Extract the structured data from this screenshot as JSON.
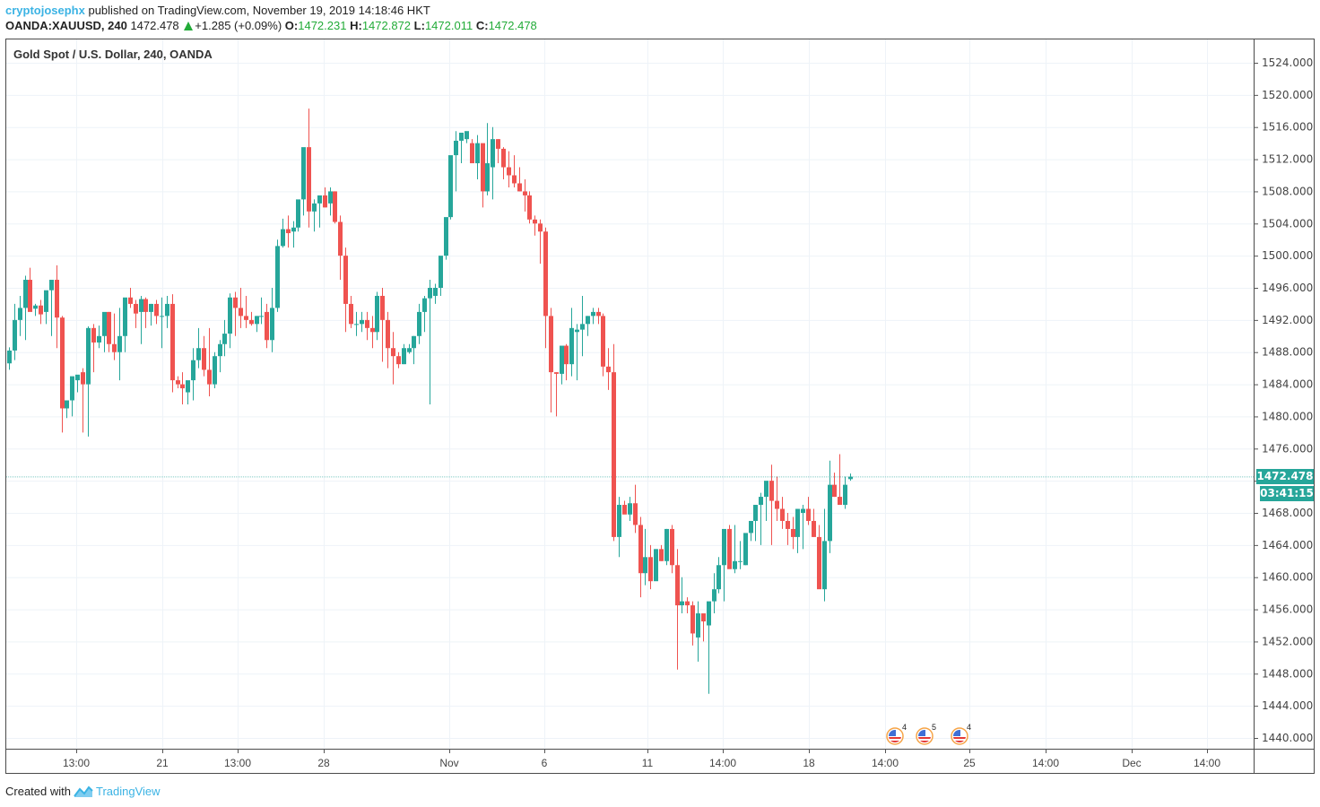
{
  "header": {
    "publisher": "cryptojosephx",
    "published_text": " published on TradingView.com, November 19, 2019 14:18:46 HKT",
    "symbol": "OANDA:XAUUSD, 240",
    "last": "1472.478",
    "change": "+1.285 (+0.09%)",
    "o_label": "O:",
    "o": "1472.231",
    "h_label": "H:",
    "h": "1472.872",
    "l_label": "L:",
    "l": "1472.011",
    "c_label": "C:",
    "c": "1472.478"
  },
  "pane_title": "Gold Spot / U.S. Dollar, 240, OANDA",
  "price_label": "1472.478",
  "countdown": "03:41:15",
  "footer": {
    "created_with": "Created with",
    "brand": "TradingView"
  },
  "colors": {
    "up": "#26a69a",
    "down": "#ef5350",
    "grid": "#eef3f8",
    "last_line": "#80cbc4",
    "axis": "#4a4a4a"
  },
  "events": [
    {
      "x": 998,
      "count": "4"
    },
    {
      "x": 1031,
      "count": "5"
    },
    {
      "x": 1070,
      "count": "4"
    }
  ],
  "chart_data": {
    "type": "candlestick",
    "title": "Gold Spot / U.S. Dollar, 240, OANDA",
    "symbol": "OANDA:XAUUSD",
    "timeframe": "240",
    "ylim": [
      1438,
      1526
    ],
    "y_ticks": [
      "1524.000",
      "1520.000",
      "1516.000",
      "1512.000",
      "1508.000",
      "1504.000",
      "1500.000",
      "1496.000",
      "1492.000",
      "1488.000",
      "1484.000",
      "1480.000",
      "1476.000",
      "1472.000",
      "1468.000",
      "1464.000",
      "1460.000",
      "1456.000",
      "1452.000",
      "1448.000",
      "1444.000",
      "1440.000"
    ],
    "y_tick_values": [
      1524,
      1520,
      1516,
      1512,
      1508,
      1504,
      1500,
      1496,
      1492,
      1488,
      1484,
      1480,
      1476,
      1472,
      1468,
      1464,
      1460,
      1456,
      1452,
      1448,
      1444,
      1440
    ],
    "x_ticks": [
      {
        "label": "13:00",
        "x": 85
      },
      {
        "label": "21",
        "x": 181
      },
      {
        "label": "13:00",
        "x": 265
      },
      {
        "label": "28",
        "x": 361
      },
      {
        "label": "Nov",
        "x": 501
      },
      {
        "label": "6",
        "x": 607
      },
      {
        "label": "11",
        "x": 722
      },
      {
        "label": "14:00",
        "x": 806
      },
      {
        "label": "18",
        "x": 902
      },
      {
        "label": "14:00",
        "x": 987
      },
      {
        "label": "25",
        "x": 1081
      },
      {
        "label": "14:00",
        "x": 1166
      },
      {
        "label": "Dec",
        "x": 1262
      },
      {
        "label": "14:00",
        "x": 1346
      }
    ],
    "last_price": 1472.478,
    "grid": true,
    "ohlc": [
      [
        1486.6,
        1488.6,
        1485.8,
        1488.2
      ],
      [
        1488.2,
        1494.0,
        1487.0,
        1492.0
      ],
      [
        1492.0,
        1495.0,
        1490.0,
        1493.5
      ],
      [
        1493.5,
        1497.5,
        1489.5,
        1497.0
      ],
      [
        1497.0,
        1498.5,
        1493.3,
        1493.0
      ],
      [
        1493.4,
        1494.0,
        1492.5,
        1493.8
      ],
      [
        1493.8,
        1494.5,
        1491.5,
        1492.7
      ],
      [
        1493.0,
        1495.3,
        1491.5,
        1495.7
      ],
      [
        1495.7,
        1496.8,
        1490.0,
        1497.0
      ],
      [
        1497.0,
        1498.8,
        1488.5,
        1492.3
      ],
      [
        1492.3,
        1492.5,
        1478.0,
        1481.0
      ],
      [
        1481.0,
        1481.5,
        1479.8,
        1482.0
      ],
      [
        1482.0,
        1484.5,
        1480.0,
        1485.0
      ],
      [
        1484.5,
        1484.8,
        1483.0,
        1485.2
      ],
      [
        1485.5,
        1486.0,
        1478.0,
        1484.0
      ],
      [
        1484.0,
        1491.2,
        1477.5,
        1491.0
      ],
      [
        1491.0,
        1491.5,
        1485.5,
        1489.2
      ],
      [
        1489.2,
        1491.3,
        1488.5,
        1490.0
      ],
      [
        1490.0,
        1492.7,
        1488.0,
        1493.0
      ],
      [
        1493.0,
        1493.0,
        1488.0,
        1489.0
      ],
      [
        1489.0,
        1492.8,
        1487.0,
        1488.0
      ],
      [
        1488.0,
        1493.5,
        1484.5,
        1490.0
      ],
      [
        1490.0,
        1494.3,
        1488.0,
        1494.8
      ],
      [
        1494.8,
        1496.0,
        1493.5,
        1494.0
      ],
      [
        1494.0,
        1494.5,
        1491.0,
        1492.8
      ],
      [
        1493.0,
        1495.0,
        1489.0,
        1494.6
      ],
      [
        1494.6,
        1494.8,
        1491.0,
        1493.0
      ],
      [
        1493.0,
        1494.0,
        1491.3,
        1494.0
      ],
      [
        1494.0,
        1494.5,
        1491.5,
        1492.5
      ],
      [
        1492.5,
        1494.8,
        1488.5,
        1492.5
      ],
      [
        1492.5,
        1495.0,
        1491.0,
        1494.0
      ],
      [
        1494.0,
        1495.2,
        1483.0,
        1484.5
      ],
      [
        1484.5,
        1485.0,
        1483.5,
        1484.0
      ],
      [
        1484.0,
        1485.5,
        1481.5,
        1483.5
      ],
      [
        1483.0,
        1484.0,
        1481.5,
        1484.5
      ],
      [
        1484.5,
        1488.5,
        1482.0,
        1487.0
      ],
      [
        1487.0,
        1491.0,
        1486.0,
        1488.5
      ],
      [
        1488.5,
        1490.0,
        1485.0,
        1485.8
      ],
      [
        1485.8,
        1491.0,
        1482.5,
        1484.0
      ],
      [
        1484.0,
        1488.0,
        1483.5,
        1487.5
      ],
      [
        1487.5,
        1489.5,
        1485.5,
        1489.0
      ],
      [
        1489.0,
        1492.0,
        1487.5,
        1490.3
      ],
      [
        1490.3,
        1495.3,
        1488.5,
        1494.8
      ],
      [
        1494.8,
        1495.5,
        1490.0,
        1493.5
      ],
      [
        1493.5,
        1496.0,
        1491.0,
        1492.5
      ],
      [
        1492.5,
        1495.0,
        1491.0,
        1492.0
      ],
      [
        1492.0,
        1493.0,
        1491.3,
        1491.5
      ],
      [
        1491.5,
        1492.5,
        1490.5,
        1492.5
      ],
      [
        1492.5,
        1494.8,
        1491.5,
        1492.5
      ],
      [
        1493.0,
        1494.0,
        1488.5,
        1489.5
      ],
      [
        1489.5,
        1496.0,
        1488.0,
        1493.5
      ],
      [
        1493.5,
        1502.0,
        1493.0,
        1501.2
      ],
      [
        1501.2,
        1504.6,
        1501.0,
        1503.3
      ],
      [
        1503.3,
        1505.0,
        1501.0,
        1502.8
      ],
      [
        1503.0,
        1504.3,
        1501.0,
        1503.5
      ],
      [
        1503.5,
        1505.5,
        1503.0,
        1507.0
      ],
      [
        1507.0,
        1508.5,
        1505.0,
        1513.5
      ],
      [
        1513.5,
        1518.3,
        1503.5,
        1505.5
      ],
      [
        1505.5,
        1507.0,
        1503.0,
        1506.5
      ],
      [
        1506.5,
        1507.2,
        1503.5,
        1507.5
      ],
      [
        1507.5,
        1508.5,
        1506.0,
        1506.0
      ],
      [
        1506.5,
        1508.5,
        1505.0,
        1508.0
      ],
      [
        1508.0,
        1508.0,
        1504.0,
        1504.2
      ],
      [
        1504.2,
        1505.0,
        1497.0,
        1500.0
      ],
      [
        1500.0,
        1501.0,
        1490.5,
        1494.0
      ],
      [
        1494.0,
        1495.0,
        1491.0,
        1491.5
      ],
      [
        1491.5,
        1493.0,
        1490.0,
        1491.5
      ],
      [
        1491.5,
        1493.0,
        1490.5,
        1492.0
      ],
      [
        1492.0,
        1493.0,
        1489.5,
        1491.0
      ],
      [
        1491.0,
        1492.5,
        1488.5,
        1490.5
      ],
      [
        1490.5,
        1495.5,
        1489.5,
        1495.0
      ],
      [
        1495.0,
        1496.0,
        1486.8,
        1492.0
      ],
      [
        1492.0,
        1493.0,
        1486.0,
        1488.5
      ],
      [
        1488.5,
        1490.5,
        1484.0,
        1487.5
      ],
      [
        1487.5,
        1488.0,
        1486.0,
        1486.5
      ],
      [
        1486.5,
        1489.0,
        1486.5,
        1488.5
      ],
      [
        1488.0,
        1489.0,
        1487.8,
        1488.5
      ],
      [
        1488.5,
        1490.0,
        1486.5,
        1490.0
      ],
      [
        1490.0,
        1494.0,
        1489.0,
        1493.0
      ],
      [
        1493.0,
        1495.0,
        1490.5,
        1494.7
      ],
      [
        1494.7,
        1497.0,
        1481.5,
        1496.0
      ],
      [
        1495.0,
        1496.5,
        1494.0,
        1496.0
      ],
      [
        1496.0,
        1497.5,
        1495.0,
        1500.0
      ],
      [
        1500.0,
        1503.0,
        1499.5,
        1504.8
      ],
      [
        1504.8,
        1505.5,
        1504.5,
        1512.5
      ],
      [
        1512.5,
        1515.5,
        1508.0,
        1514.3
      ],
      [
        1514.3,
        1515.0,
        1511.5,
        1515.3
      ],
      [
        1514.5,
        1515.3,
        1514.0,
        1515.5
      ],
      [
        1514.0,
        1514.5,
        1511.5,
        1511.5
      ],
      [
        1511.5,
        1515.0,
        1509.5,
        1514.0
      ],
      [
        1514.0,
        1512.5,
        1506.0,
        1508.0
      ],
      [
        1508.0,
        1516.5,
        1507.5,
        1511.5
      ],
      [
        1511.0,
        1516.0,
        1507.0,
        1514.5
      ],
      [
        1514.5,
        1514.5,
        1511.5,
        1513.3
      ],
      [
        1513.3,
        1513.5,
        1509.5,
        1511.0
      ],
      [
        1511.0,
        1513.0,
        1508.5,
        1510.0
      ],
      [
        1510.0,
        1512.5,
        1508.5,
        1509.0
      ],
      [
        1509.0,
        1511.0,
        1508.0,
        1508.0
      ],
      [
        1508.0,
        1509.5,
        1505.5,
        1507.5
      ],
      [
        1507.5,
        1508.0,
        1504.0,
        1504.5
      ],
      [
        1504.5,
        1505.0,
        1502.5,
        1504.0
      ],
      [
        1504.0,
        1504.5,
        1499.0,
        1503.0
      ],
      [
        1503.0,
        1503.5,
        1488.5,
        1492.5
      ],
      [
        1492.5,
        1493.5,
        1480.5,
        1485.5
      ],
      [
        1485.5,
        1485.5,
        1480.0,
        1485.3
      ],
      [
        1485.3,
        1488.0,
        1484.0,
        1488.8
      ],
      [
        1488.8,
        1489.0,
        1484.5,
        1486.5
      ],
      [
        1486.5,
        1493.5,
        1485.0,
        1491.0
      ],
      [
        1490.5,
        1491.5,
        1484.5,
        1490.8
      ],
      [
        1490.8,
        1495.0,
        1487.5,
        1491.5
      ],
      [
        1491.5,
        1492.5,
        1490.0,
        1492.5
      ],
      [
        1492.5,
        1493.5,
        1491.5,
        1493.0
      ],
      [
        1493.0,
        1493.5,
        1491.5,
        1492.5
      ],
      [
        1492.5,
        1492.8,
        1485.0,
        1486.2
      ],
      [
        1486.2,
        1488.5,
        1483.3,
        1485.5
      ],
      [
        1485.5,
        1489.0,
        1464.5,
        1465.0
      ],
      [
        1465.0,
        1470.0,
        1462.5,
        1469.0
      ],
      [
        1469.0,
        1469.5,
        1468.3,
        1467.8
      ],
      [
        1467.8,
        1470.0,
        1467.0,
        1469.2
      ],
      [
        1469.2,
        1471.5,
        1465.5,
        1466.5
      ],
      [
        1466.5,
        1467.5,
        1457.5,
        1460.5
      ],
      [
        1460.5,
        1466.0,
        1459.0,
        1462.5
      ],
      [
        1462.5,
        1464.0,
        1458.5,
        1459.5
      ],
      [
        1459.5,
        1463.5,
        1460.0,
        1463.5
      ],
      [
        1463.5,
        1464.0,
        1462.0,
        1462.0
      ],
      [
        1462.0,
        1466.0,
        1461.5,
        1466.0
      ],
      [
        1466.0,
        1466.5,
        1460.5,
        1461.5
      ],
      [
        1461.5,
        1463.5,
        1448.5,
        1456.5
      ],
      [
        1456.5,
        1460.0,
        1455.5,
        1457.0
      ],
      [
        1457.0,
        1457.5,
        1455.5,
        1456.5
      ],
      [
        1456.5,
        1457.0,
        1451.5,
        1453.0
      ],
      [
        1452.5,
        1457.0,
        1449.5,
        1455.5
      ],
      [
        1455.5,
        1455.0,
        1452.0,
        1454.5
      ],
      [
        1454.0,
        1456.5,
        1445.5,
        1457.0
      ],
      [
        1457.0,
        1460.5,
        1455.5,
        1458.5
      ],
      [
        1458.5,
        1462.5,
        1458.0,
        1461.5
      ],
      [
        1461.5,
        1462.0,
        1457.0,
        1466.0
      ],
      [
        1466.0,
        1466.5,
        1461.5,
        1461.0
      ],
      [
        1461.0,
        1466.5,
        1460.5,
        1462.0
      ],
      [
        1462.0,
        1464.5,
        1461.0,
        1462.0
      ],
      [
        1461.5,
        1463.0,
        1461.5,
        1465.5
      ],
      [
        1465.5,
        1466.5,
        1464.5,
        1467.0
      ],
      [
        1467.0,
        1469.0,
        1464.5,
        1469.0
      ],
      [
        1469.0,
        1470.5,
        1464.0,
        1470.0
      ],
      [
        1470.0,
        1471.0,
        1467.0,
        1472.0
      ],
      [
        1472.0,
        1474.0,
        1464.0,
        1469.5
      ],
      [
        1469.5,
        1472.5,
        1467.0,
        1468.5
      ],
      [
        1468.5,
        1470.0,
        1466.0,
        1467.0
      ],
      [
        1467.0,
        1468.0,
        1464.0,
        1466.0
      ],
      [
        1466.0,
        1467.5,
        1463.5,
        1465.0
      ],
      [
        1465.0,
        1468.5,
        1463.0,
        1468.5
      ],
      [
        1468.0,
        1469.0,
        1463.5,
        1468.5
      ],
      [
        1468.5,
        1470.0,
        1466.5,
        1467.0
      ],
      [
        1467.0,
        1468.5,
        1465.0,
        1465.0
      ],
      [
        1465.0,
        1466.5,
        1459.0,
        1458.5
      ],
      [
        1458.5,
        1468.5,
        1457.0,
        1464.5
      ],
      [
        1464.5,
        1474.5,
        1463.0,
        1471.5
      ],
      [
        1471.5,
        1473.0,
        1470.0,
        1470.0
      ],
      [
        1470.0,
        1475.3,
        1469.0,
        1469.0
      ],
      [
        1469.0,
        1472.5,
        1468.5,
        1471.5
      ],
      [
        1472.2,
        1472.9,
        1472.0,
        1472.5
      ]
    ]
  }
}
